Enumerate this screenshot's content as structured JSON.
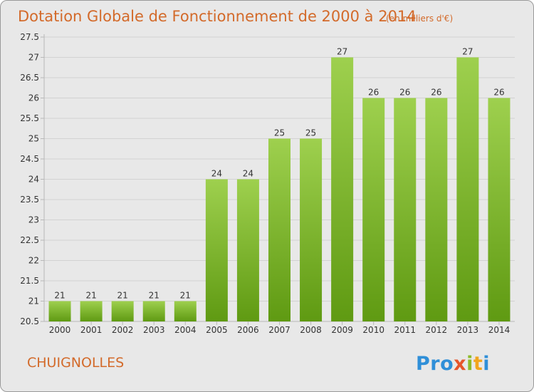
{
  "chart_data": {
    "type": "bar",
    "title": "Dotation Globale de Fonctionnement de 2000 à 2014",
    "unit": "(en milliers d'€)",
    "categories": [
      "2000",
      "2001",
      "2002",
      "2003",
      "2004",
      "2005",
      "2006",
      "2007",
      "2008",
      "2009",
      "2010",
      "2011",
      "2012",
      "2013",
      "2014"
    ],
    "values": [
      21,
      21,
      21,
      21,
      21,
      24,
      24,
      25,
      25,
      27,
      26,
      26,
      26,
      27,
      26
    ],
    "ylim": [
      20.5,
      27.5
    ],
    "yticks": [
      "20.5",
      "21",
      "21.5",
      "22",
      "22.5",
      "23",
      "23.5",
      "24",
      "24.5",
      "25",
      "25.5",
      "26",
      "26.5",
      "27",
      "27.5"
    ],
    "grid": true,
    "colors": {
      "bar_top": "#9ed04e",
      "bar_bottom": "#5f9a12",
      "title": "#d36a2a",
      "background": "#e8e8e8"
    }
  },
  "footer": {
    "commune": "CHUIGNOLLES",
    "logo": "Proxiti"
  }
}
